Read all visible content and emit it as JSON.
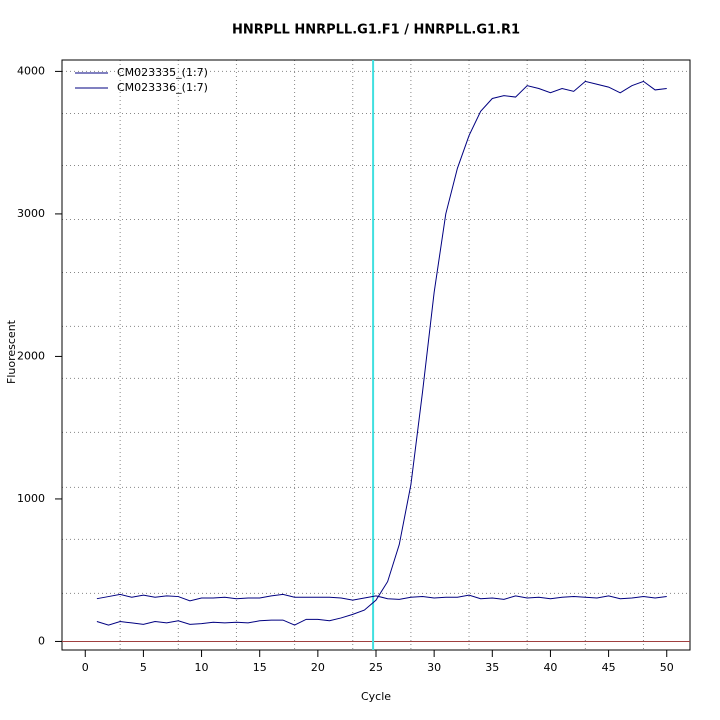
{
  "chart_data": {
    "type": "line",
    "title": "HNRPLL  HNRPLL.G1.F1 / HNRPLL.G1.R1",
    "x_label": "Cycle",
    "y_label": "Fluorescent",
    "x": [
      1,
      2,
      3,
      4,
      5,
      6,
      7,
      8,
      9,
      10,
      11,
      12,
      13,
      14,
      15,
      16,
      17,
      18,
      19,
      20,
      21,
      22,
      23,
      24,
      25,
      26,
      27,
      28,
      29,
      30,
      31,
      32,
      33,
      34,
      35,
      36,
      37,
      38,
      39,
      40,
      41,
      42,
      43,
      44,
      45,
      46,
      47,
      48,
      49,
      50
    ],
    "series": [
      {
        "name": "CM023335_(1:7)",
        "color": "#000080",
        "values": [
          300,
          315,
          330,
          310,
          325,
          310,
          320,
          315,
          285,
          305,
          305,
          310,
          300,
          305,
          305,
          320,
          330,
          310,
          310,
          310,
          310,
          305,
          290,
          305,
          320,
          300,
          295,
          310,
          315,
          305,
          310,
          310,
          325,
          300,
          305,
          295,
          320,
          305,
          310,
          300,
          310,
          315,
          310,
          305,
          320,
          300,
          305,
          315,
          305,
          315
        ]
      },
      {
        "name": "CM023336_(1:7)",
        "color": "#000080",
        "values": [
          140,
          115,
          140,
          130,
          120,
          140,
          130,
          145,
          120,
          125,
          135,
          130,
          135,
          130,
          145,
          150,
          150,
          115,
          155,
          155,
          145,
          165,
          190,
          220,
          290,
          420,
          680,
          1100,
          1750,
          2450,
          3000,
          3320,
          3550,
          3720,
          3810,
          3830,
          3820,
          3900,
          3880,
          3850,
          3880,
          3860,
          3930,
          3910,
          3890,
          3850,
          3900,
          3930,
          3870,
          3880
        ]
      }
    ],
    "xlim": [
      -2,
      52
    ],
    "ylim": [
      -60,
      4080
    ],
    "xticks": [
      0,
      5,
      10,
      15,
      20,
      25,
      30,
      35,
      40,
      45,
      50
    ],
    "yticks": [
      0,
      1000,
      2000,
      3000,
      4000
    ],
    "xgrid": [
      3,
      8,
      13,
      18,
      23,
      28,
      33,
      38,
      43,
      48
    ],
    "ygrid": [
      337,
      716,
      1081,
      1467,
      1846,
      2211,
      2589,
      2961,
      3340,
      3705,
      4000
    ],
    "threshold_x": 24.75,
    "threshold_color": "#40e0e0",
    "baseline_y": 0,
    "baseline_color": "#a04040",
    "legend": "top-left"
  }
}
